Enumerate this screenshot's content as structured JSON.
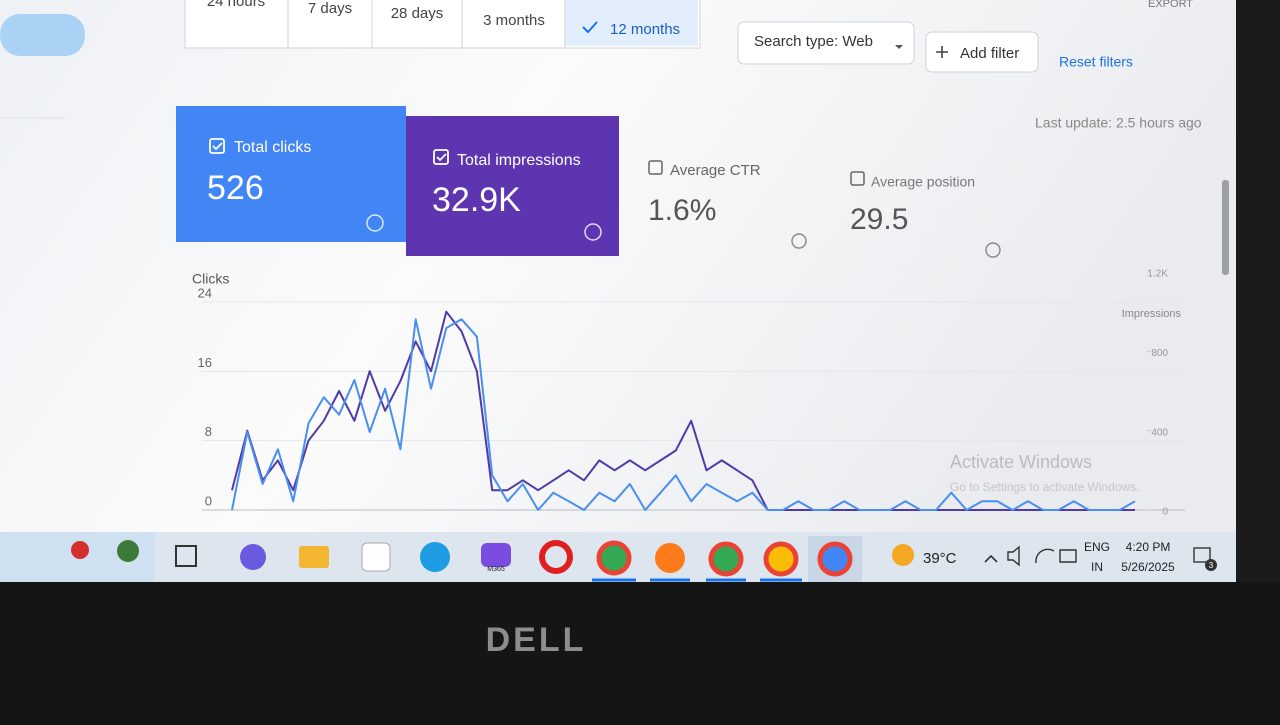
{
  "toolbar": {
    "tabs": [
      "24 hours",
      "7 days",
      "28 days",
      "3 months",
      "12 months"
    ],
    "search_type": "Search type: Web",
    "add_filter": "Add filter",
    "reset": "Reset filters",
    "export": "EXPORT",
    "last_update": "Last update: 2.5 hours ago"
  },
  "metrics": [
    {
      "label": "Total clicks",
      "value": 526
    },
    {
      "label": "Total impressions",
      "value": "32.9K"
    },
    {
      "label": "Average CTR",
      "value": "1.6%"
    },
    {
      "label": "Average position",
      "value": 29.5
    }
  ],
  "chart_data": {
    "type": "line",
    "y_label": "Clicks",
    "y2_label": "Impressions",
    "ylim": [
      0,
      24
    ],
    "yticks": [
      0,
      8,
      16,
      24
    ],
    "y2lim": [
      0,
      1200
    ],
    "y2ticks": [
      0,
      400,
      800,
      {
        "value": 1200,
        "label": "1.2K"
      }
    ],
    "grid": true,
    "series": [
      {
        "name": "Impressions",
        "color": "#4f3aa8",
        "axis": "y2",
        "values": [
          100,
          400,
          150,
          250,
          100,
          350,
          450,
          600,
          450,
          700,
          500,
          650,
          850,
          700,
          1000,
          900,
          700,
          100,
          100,
          150,
          100,
          150,
          200,
          150,
          250,
          200,
          250,
          200,
          250,
          300,
          450,
          200,
          250,
          200,
          150,
          0,
          0,
          0,
          0,
          0,
          0,
          0,
          0,
          0,
          0,
          0,
          0,
          0,
          0,
          0,
          0,
          0,
          0,
          0,
          0,
          0,
          0,
          0,
          0,
          0
        ]
      },
      {
        "name": "Clicks",
        "color": "#4a8ff0",
        "axis": "y",
        "values": [
          0,
          9,
          3,
          7,
          1,
          10,
          13,
          11,
          15,
          9,
          14,
          7,
          22,
          14,
          21,
          22,
          20,
          4,
          1,
          3,
          0,
          2,
          1,
          0,
          2,
          1,
          3,
          0,
          2,
          4,
          1,
          3,
          2,
          1,
          2,
          0,
          0,
          1,
          0,
          0,
          1,
          0,
          0,
          0,
          1,
          0,
          0,
          2,
          0,
          1,
          1,
          0,
          1,
          0,
          0,
          1,
          0,
          0,
          0,
          1
        ]
      }
    ]
  },
  "watermark": {
    "title": "Activate Windows",
    "text": "Go to Settings to activate Windows."
  },
  "taskbar": {
    "m365": "M365",
    "weather": "39°C",
    "lang": "ENG",
    "region": "IN",
    "time": "4:20 PM",
    "date": "5/26/2025",
    "notifications": "3"
  },
  "bezel": {
    "brand": "DELL"
  }
}
